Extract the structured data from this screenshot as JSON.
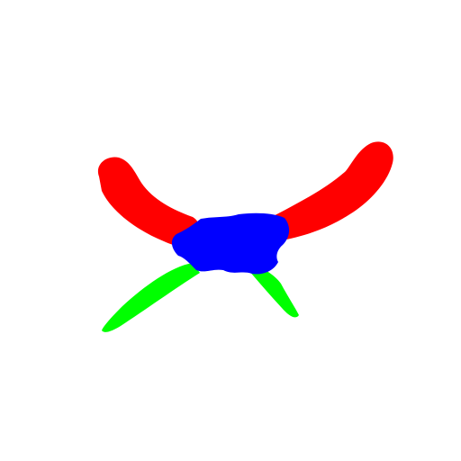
{
  "figure": {
    "background_color": "#ffffff",
    "parts": [
      {
        "name": "left-arm",
        "color": "#ff0000"
      },
      {
        "name": "right-arm",
        "color": "#ff0000"
      },
      {
        "name": "left-leg",
        "color": "#00ff00"
      },
      {
        "name": "right-leg",
        "color": "#00ff00"
      },
      {
        "name": "body",
        "color": "#0000ff"
      }
    ]
  }
}
